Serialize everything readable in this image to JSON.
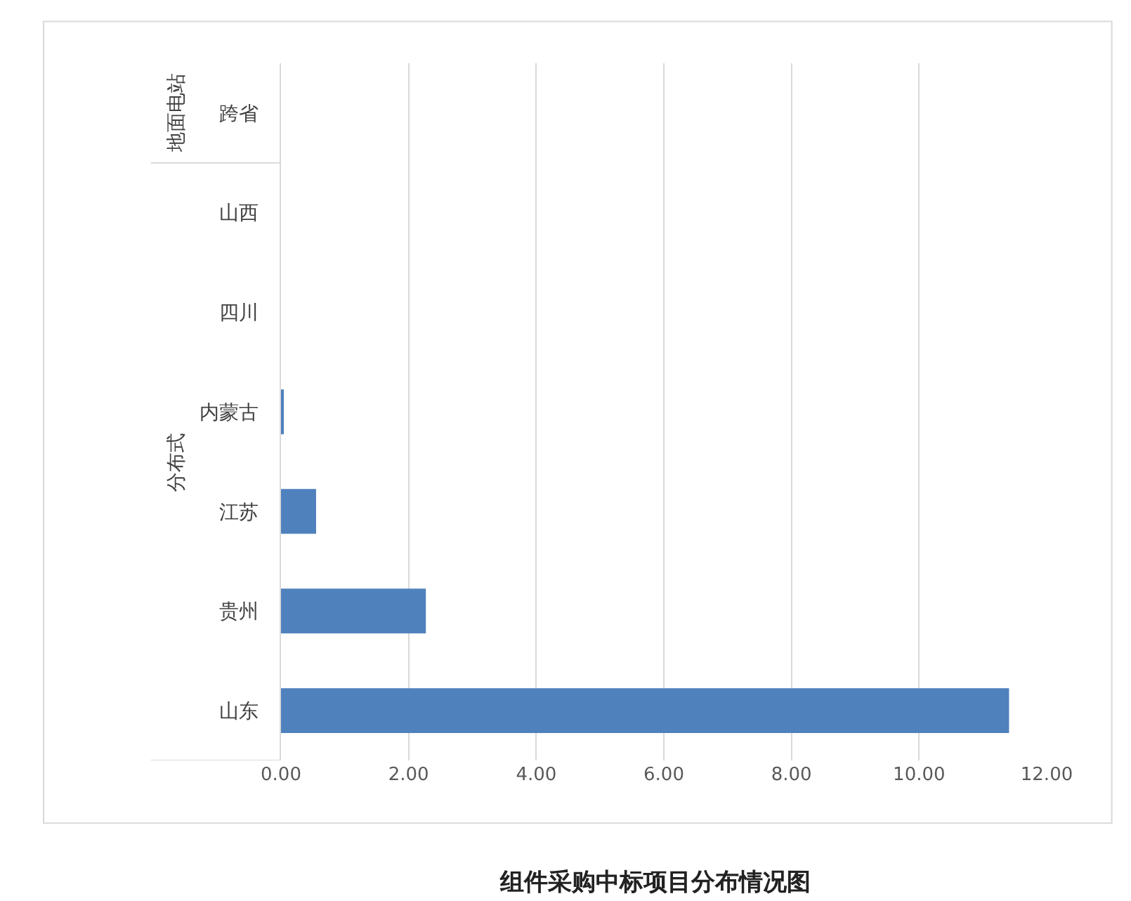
{
  "chart_data": {
    "type": "bar",
    "orientation": "horizontal",
    "title": "组件采购中标项目分布情况图",
    "categories": [
      "跨省",
      "山西",
      "四川",
      "内蒙古",
      "江苏",
      "贵州",
      "山东"
    ],
    "values": [
      0,
      0,
      0,
      0.03,
      0.55,
      2.27,
      11.41
    ],
    "color": "#4f81bd",
    "xlim": [
      0,
      12
    ],
    "xticks": [
      {
        "value": 0,
        "label": "0.00"
      },
      {
        "value": 2,
        "label": "2.00"
      },
      {
        "value": 4,
        "label": "4.00"
      },
      {
        "value": 6,
        "label": "6.00"
      },
      {
        "value": 8,
        "label": "8.00"
      },
      {
        "value": 10,
        "label": "10.00"
      },
      {
        "value": 12,
        "label": "12.00"
      }
    ],
    "grid": "x",
    "legend": false,
    "annotations": [
      "地面电站",
      "分布式"
    ]
  }
}
